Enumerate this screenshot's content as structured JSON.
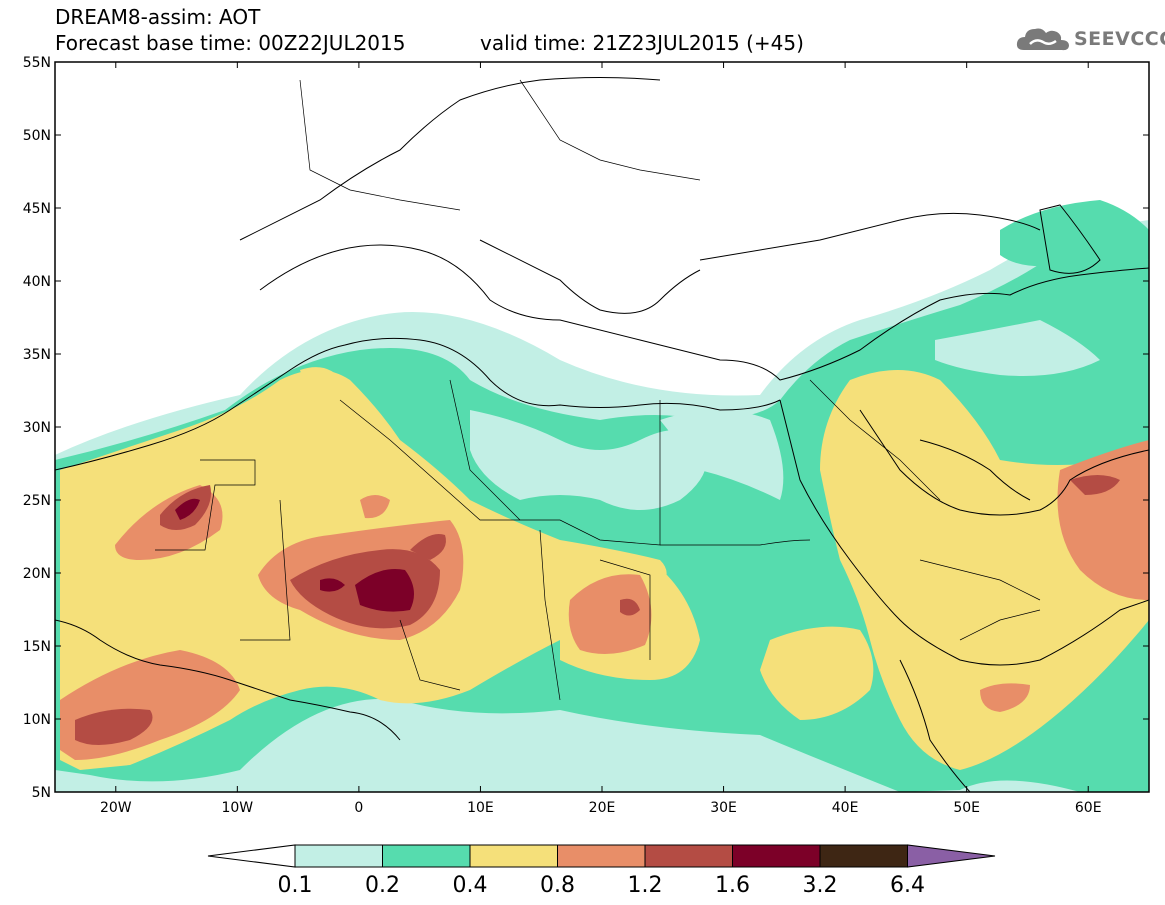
{
  "header": {
    "title": "DREAM8-assim: AOT",
    "base_time": "Forecast base time: 00Z22JUL2015",
    "valid_time": "valid time: 21Z23JUL2015 (+45)",
    "logo_text": "SEEVCCC"
  },
  "map": {
    "lon_range": [
      -25,
      65
    ],
    "lat_range": [
      5,
      55
    ],
    "lat_ticks": [
      "55N",
      "50N",
      "45N",
      "40N",
      "35N",
      "30N",
      "25N",
      "20N",
      "15N",
      "10N",
      "5N"
    ],
    "lon_ticks": [
      "20W",
      "10W",
      "0",
      "10E",
      "20E",
      "30E",
      "40E",
      "50E",
      "60E"
    ]
  },
  "colorbar": {
    "labels": [
      "0.1",
      "0.2",
      "0.4",
      "0.8",
      "1.2",
      "1.6",
      "3.2",
      "6.4"
    ],
    "colors": [
      "#ffffff",
      "#c2efe5",
      "#56dcae",
      "#f5e07a",
      "#e88e68",
      "#b44c44",
      "#7c0028",
      "#3e2614",
      "#8a5fa5"
    ]
  },
  "legend_colors": {
    "very_low": "#c2efe5",
    "low": "#56dcae",
    "moderate": "#f5e07a",
    "high": "#e88e68",
    "very_high": "#b44c44",
    "extreme": "#7c0028"
  }
}
